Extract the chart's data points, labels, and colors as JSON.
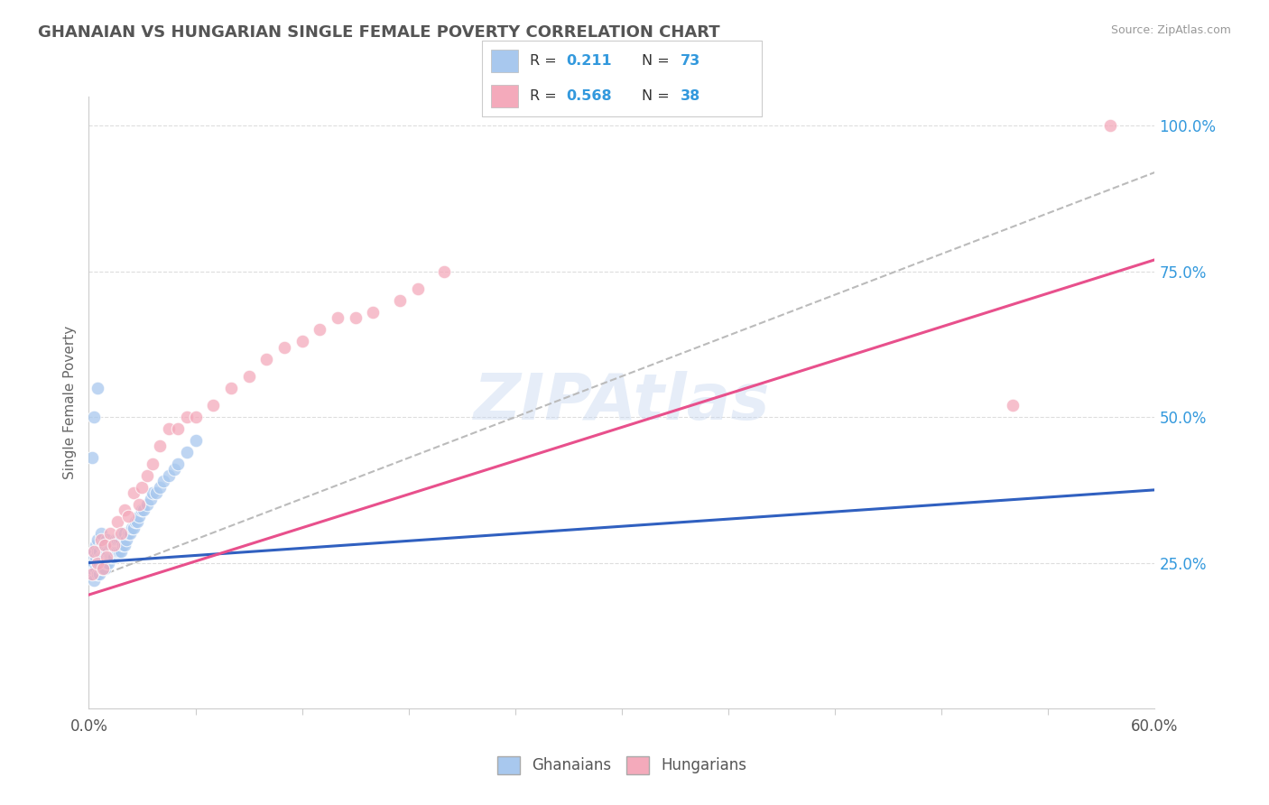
{
  "title": "GHANAIAN VS HUNGARIAN SINGLE FEMALE POVERTY CORRELATION CHART",
  "source": "Source: ZipAtlas.com",
  "ylabel": "Single Female Poverty",
  "watermark": "ZIPAtlas",
  "blue_color": "#A8C8EE",
  "pink_color": "#F4AABB",
  "blue_line_color": "#3060C0",
  "pink_line_color": "#E8508C",
  "dash_line_color": "#BBBBBB",
  "title_color": "#555555",
  "r_n_color": "#3399DD",
  "xmin": 0.0,
  "xmax": 0.6,
  "ymin": 0.0,
  "ymax": 1.05,
  "grid_color": "#DDDDDD",
  "background_color": "#FFFFFF",
  "gh_x": [
    0.001,
    0.002,
    0.002,
    0.003,
    0.003,
    0.003,
    0.004,
    0.004,
    0.004,
    0.005,
    0.005,
    0.005,
    0.005,
    0.006,
    0.006,
    0.006,
    0.007,
    0.007,
    0.007,
    0.007,
    0.008,
    0.008,
    0.008,
    0.009,
    0.009,
    0.009,
    0.01,
    0.01,
    0.01,
    0.011,
    0.011,
    0.012,
    0.012,
    0.013,
    0.013,
    0.014,
    0.014,
    0.015,
    0.015,
    0.016,
    0.016,
    0.017,
    0.017,
    0.018,
    0.018,
    0.019,
    0.019,
    0.02,
    0.02,
    0.021,
    0.022,
    0.023,
    0.024,
    0.025,
    0.026,
    0.027,
    0.028,
    0.03,
    0.031,
    0.033,
    0.035,
    0.036,
    0.038,
    0.04,
    0.042,
    0.045,
    0.048,
    0.05,
    0.055,
    0.06,
    0.002,
    0.003,
    0.005
  ],
  "gh_y": [
    0.23,
    0.24,
    0.26,
    0.22,
    0.25,
    0.27,
    0.24,
    0.26,
    0.28,
    0.23,
    0.25,
    0.27,
    0.29,
    0.23,
    0.25,
    0.27,
    0.24,
    0.26,
    0.28,
    0.3,
    0.24,
    0.26,
    0.28,
    0.24,
    0.26,
    0.28,
    0.25,
    0.27,
    0.29,
    0.25,
    0.27,
    0.26,
    0.28,
    0.26,
    0.28,
    0.26,
    0.28,
    0.27,
    0.29,
    0.27,
    0.29,
    0.27,
    0.29,
    0.27,
    0.29,
    0.28,
    0.3,
    0.28,
    0.3,
    0.29,
    0.3,
    0.3,
    0.31,
    0.31,
    0.32,
    0.32,
    0.33,
    0.34,
    0.34,
    0.35,
    0.36,
    0.37,
    0.37,
    0.38,
    0.39,
    0.4,
    0.41,
    0.42,
    0.44,
    0.46,
    0.43,
    0.5,
    0.55
  ],
  "hu_x": [
    0.002,
    0.003,
    0.005,
    0.007,
    0.008,
    0.009,
    0.01,
    0.012,
    0.014,
    0.016,
    0.018,
    0.02,
    0.022,
    0.025,
    0.028,
    0.03,
    0.033,
    0.036,
    0.04,
    0.045,
    0.05,
    0.055,
    0.06,
    0.07,
    0.08,
    0.09,
    0.1,
    0.11,
    0.12,
    0.13,
    0.14,
    0.15,
    0.16,
    0.175,
    0.185,
    0.2,
    0.52,
    0.575
  ],
  "hu_y": [
    0.23,
    0.27,
    0.25,
    0.29,
    0.24,
    0.28,
    0.26,
    0.3,
    0.28,
    0.32,
    0.3,
    0.34,
    0.33,
    0.37,
    0.35,
    0.38,
    0.4,
    0.42,
    0.45,
    0.48,
    0.48,
    0.5,
    0.5,
    0.52,
    0.55,
    0.57,
    0.6,
    0.62,
    0.63,
    0.65,
    0.67,
    0.67,
    0.68,
    0.7,
    0.72,
    0.75,
    0.52,
    1.0
  ],
  "blue_trend": [
    0.25,
    0.375
  ],
  "pink_trend": [
    0.195,
    0.77
  ],
  "dash_trend": [
    0.22,
    0.92
  ]
}
